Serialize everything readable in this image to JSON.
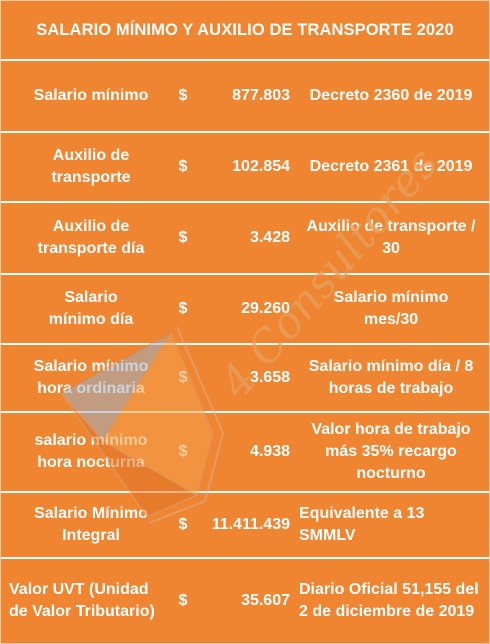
{
  "title": "SALARIO MÍNIMO Y AUXILIO DE TRANSPORTE 2020",
  "currency_symbol": "$",
  "watermark_text": "4 Consultores",
  "colors": {
    "background": "#ef8431",
    "text": "#ffffff",
    "grid": "#ffffff"
  },
  "rows": [
    {
      "label": "Salario mínimo",
      "value": "877.803",
      "note": "Decreto 2360 de 2019"
    },
    {
      "label": "Auxilio de transporte",
      "value": "102.854",
      "note": "Decreto 2361 de 2019"
    },
    {
      "label": "Auxilio de transporte día",
      "value": "3.428",
      "note": "Auxilio de transporte / 30"
    },
    {
      "label": "Salario mínimo día",
      "value": "29.260",
      "note": "Salario mínimo mes/30"
    },
    {
      "label": "Salario mínimo hora ordinaria",
      "value": "3.658",
      "note": "Salario mínimo día / 8 horas de trabajo"
    },
    {
      "label": "salario mínimo hora nocturna",
      "value": "4.938",
      "note": "Valor hora de trabajo más 35% recargo nocturno"
    },
    {
      "label": "Salario Mínimo Integral",
      "value": "11.411.439",
      "note": "Equivalente a 13 SMMLV"
    },
    {
      "label": "Valor UVT (Unidad de Valor Tributario)",
      "value": "35.607",
      "note": "Diario Oficial 51,155 del 2 de diciembre de 2019"
    }
  ]
}
